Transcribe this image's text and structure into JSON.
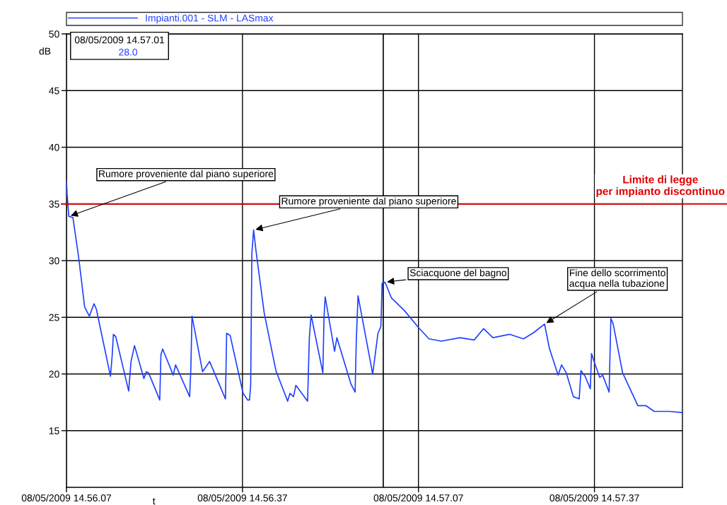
{
  "chart_data": {
    "type": "line",
    "xlabel": "t",
    "ylabel": "dB",
    "xlim": [
      "2009-05-08T14:56:07",
      "2009-05-08T14:57:52"
    ],
    "xticks": [
      {
        "value": "2009-05-08T14:56:07",
        "label": "08/05/2009 14.56.07"
      },
      {
        "value": "2009-05-08T14:56:37",
        "label": "08/05/2009 14.56.37"
      },
      {
        "value": "2009-05-08T14:57:07",
        "label": "08/05/2009 14.57.07"
      },
      {
        "value": "2009-05-08T14:57:37",
        "label": "08/05/2009 14.57.37"
      }
    ],
    "ylim": [
      10,
      50
    ],
    "yticks": [
      15,
      20,
      25,
      30,
      35,
      40,
      45,
      50
    ],
    "grid": true,
    "legend": "top",
    "marker": "none",
    "line_style": "solid",
    "ref_lines": [
      {
        "axis": "y",
        "value": 35,
        "label": "Limite di legge\nper impianto discontinuo",
        "color": "#e00000"
      },
      {
        "axis": "x",
        "value": "2009-05-08T14:57:01",
        "label": "08/05/2009 14.57.01",
        "color": "#000000"
      }
    ],
    "annotations": [
      "28.0",
      {
        "text": "Rumore proveniente dal piano superiore",
        "x": "2009-05-08T14:56:07.4",
        "y": 33.9
      },
      {
        "text": "Rumore proveniente dal piano superiore",
        "x": "2009-05-08T14:56:38.9",
        "y": 32.7
      },
      {
        "text": "Sciacquone del bagno",
        "x": "2009-05-08T14:57:01.3",
        "y": 28.1
      },
      {
        "text": "Fine dello scorrimento\nacqua nella tubazione",
        "x": "2009-05-08T14:57:28.5",
        "y": 24.4
      }
    ],
    "series": [
      {
        "name": "Impianti.001 - SLM - LASmax",
        "color": "#2040ff",
        "x": [
          "2009-05-08T14:56:07.0",
          "2009-05-08T14:56:07.1",
          "2009-05-08T14:56:07.4",
          "2009-05-08T14:56:08.1",
          "2009-05-08T14:56:09.1",
          "2009-05-08T14:56:10.1",
          "2009-05-08T14:56:10.9",
          "2009-05-08T14:56:11.7",
          "2009-05-08T14:56:12.1",
          "2009-05-08T14:56:14.5",
          "2009-05-08T14:56:14.8",
          "2009-05-08T14:56:15.0",
          "2009-05-08T14:56:15.4",
          "2009-05-08T14:56:17.6",
          "2009-05-08T14:56:18.0",
          "2009-05-08T14:56:18.6",
          "2009-05-08T14:56:20.2",
          "2009-05-08T14:56:20.6",
          "2009-05-08T14:56:21.0",
          "2009-05-08T14:56:22.9",
          "2009-05-08T14:56:23.1",
          "2009-05-08T14:56:23.4",
          "2009-05-08T14:56:25.2",
          "2009-05-08T14:56:25.6",
          "2009-05-08T14:56:28.0",
          "2009-05-08T14:56:28.2",
          "2009-05-08T14:56:28.4",
          "2009-05-08T14:56:30.2",
          "2009-05-08T14:56:31.4",
          "2009-05-08T14:56:34.1",
          "2009-05-08T14:56:34.3",
          "2009-05-08T14:56:34.9",
          "2009-05-08T14:56:37.1",
          "2009-05-08T14:56:37.9",
          "2009-05-08T14:56:38.2",
          "2009-05-08T14:56:38.4",
          "2009-05-08T14:56:38.6",
          "2009-05-08T14:56:38.9",
          "2009-05-08T14:56:39.3",
          "2009-05-08T14:56:40.7",
          "2009-05-08T14:56:42.7",
          "2009-05-08T14:56:44.7",
          "2009-05-08T14:56:45.1",
          "2009-05-08T14:56:45.7",
          "2009-05-08T14:56:46.1",
          "2009-05-08T14:56:48.1",
          "2009-05-08T14:56:48.4",
          "2009-05-08T14:56:48.7",
          "2009-05-08T14:56:50.7",
          "2009-05-08T14:56:50.9",
          "2009-05-08T14:56:51.1",
          "2009-05-08T14:56:52.7",
          "2009-05-08T14:56:53.1",
          "2009-05-08T14:56:55.5",
          "2009-05-08T14:56:56.2",
          "2009-05-08T14:56:56.4",
          "2009-05-08T14:56:56.7",
          "2009-05-08T14:56:59.2",
          "2009-05-08T14:57:00.1",
          "2009-05-08T14:57:00.6",
          "2009-05-08T14:57:00.8",
          "2009-05-08T14:57:01.3",
          "2009-05-08T14:57:02.4",
          "2009-05-08T14:57:04.6",
          "2009-05-08T14:57:07.0",
          "2009-05-08T14:57:08.8",
          "2009-05-08T14:57:10.9",
          "2009-05-08T14:57:14.1",
          "2009-05-08T14:57:16.5",
          "2009-05-08T14:57:18.1",
          "2009-05-08T14:57:19.7",
          "2009-05-08T14:57:22.5",
          "2009-05-08T14:57:24.9",
          "2009-05-08T14:57:26.5",
          "2009-05-08T14:57:28.5",
          "2009-05-08T14:57:29.3",
          "2009-05-08T14:57:30.8",
          "2009-05-08T14:57:31.4",
          "2009-05-08T14:57:32.2",
          "2009-05-08T14:57:33.4",
          "2009-05-08T14:57:34.4",
          "2009-05-08T14:57:34.7",
          "2009-05-08T14:57:35.4",
          "2009-05-08T14:57:36.3",
          "2009-05-08T14:57:36.5",
          "2009-05-08T14:57:37.0",
          "2009-05-08T14:57:37.9",
          "2009-05-08T14:57:38.4",
          "2009-05-08T14:57:39.5",
          "2009-05-08T14:57:39.8",
          "2009-05-08T14:57:40.2",
          "2009-05-08T14:57:41.8",
          "2009-05-08T14:57:44.4",
          "2009-05-08T14:57:45.8",
          "2009-05-08T14:57:47.2",
          "2009-05-08T14:57:49.8",
          "2009-05-08T14:57:51.9"
        ],
        "values": [
          37.0,
          35.9,
          33.9,
          33.8,
          30.2,
          25.9,
          25.1,
          26.2,
          25.7,
          19.8,
          21.7,
          23.5,
          23.3,
          18.5,
          21.1,
          22.5,
          19.6,
          20.2,
          20.1,
          17.7,
          21.7,
          22.2,
          19.9,
          20.8,
          18.0,
          20.5,
          25.1,
          20.2,
          21.1,
          17.8,
          23.6,
          23.4,
          18.3,
          17.7,
          17.7,
          19.0,
          30.6,
          32.7,
          30.9,
          25.4,
          20.3,
          17.6,
          18.3,
          18.0,
          19.0,
          17.6,
          23.2,
          25.2,
          20.1,
          25.0,
          26.8,
          22.0,
          23.2,
          19.1,
          18.4,
          22.9,
          26.9,
          20.0,
          23.6,
          24.2,
          28.0,
          28.1,
          26.7,
          25.6,
          24.1,
          23.1,
          22.9,
          23.2,
          23.0,
          24.0,
          23.2,
          23.5,
          23.1,
          23.6,
          24.4,
          22.3,
          19.9,
          20.8,
          20.1,
          18.0,
          17.8,
          20.3,
          19.8,
          18.7,
          21.8,
          21.0,
          19.7,
          19.9,
          18.4,
          24.9,
          24.4,
          20.1,
          17.2,
          17.2,
          16.7,
          16.7,
          16.6
        ]
      }
    ]
  }
}
